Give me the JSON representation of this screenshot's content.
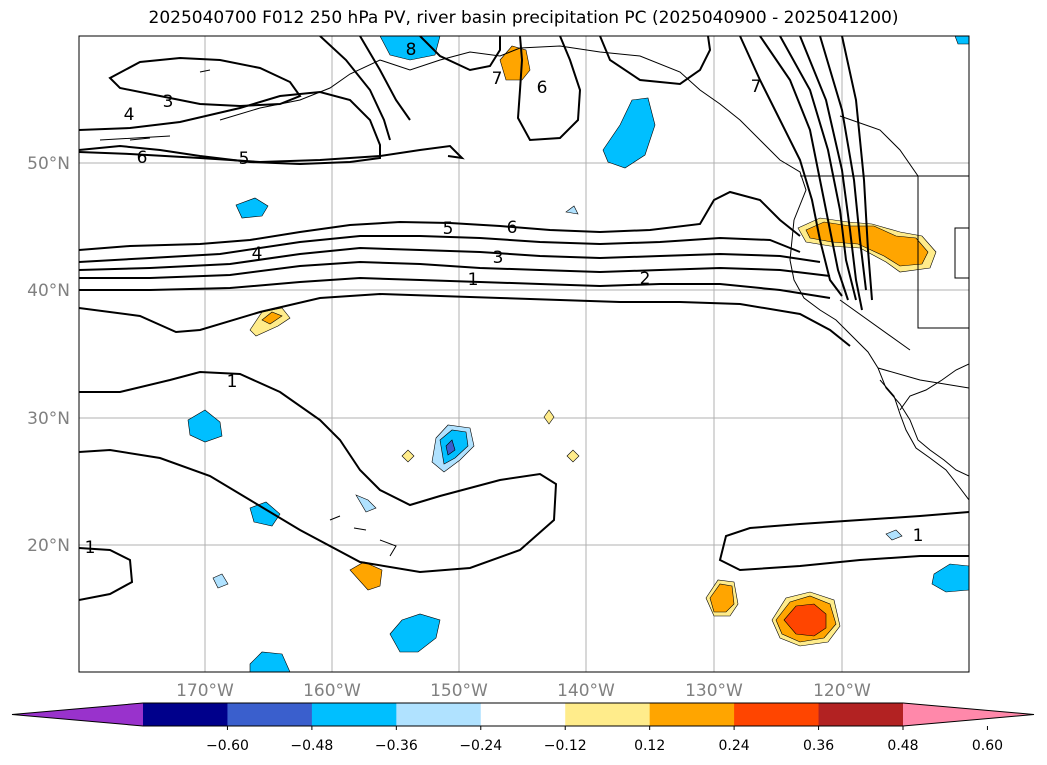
{
  "title": "2025040700 F012 250 hPa PV, river basin precipitation PC (2025040900 - 2025041200)",
  "lat_labels": [
    "50°N",
    "40°N",
    "30°N",
    "20°N"
  ],
  "lon_labels": [
    "170°W",
    "160°W",
    "150°W",
    "140°W",
    "130°W",
    "120°W"
  ],
  "contour_labels": [
    "1",
    "1",
    "1",
    "1",
    "2",
    "3",
    "3",
    "4",
    "4",
    "5",
    "5",
    "6",
    "6",
    "6",
    "7",
    "7",
    "8"
  ],
  "colorbar": {
    "ticks": [
      "−0.60",
      "−0.48",
      "−0.36",
      "−0.24",
      "−0.12",
      "0.12",
      "0.24",
      "0.36",
      "0.48",
      "0.60"
    ],
    "colors": [
      "#9932cc",
      "#00008b",
      "#3a5fcd",
      "#00bfff",
      "#b0e2ff",
      "#ffffff",
      "#ffec8b",
      "#ffa500",
      "#ff4500",
      "#b22222",
      "#ff88aa"
    ]
  },
  "colors": {
    "neg_light": "#b0e2ff",
    "neg_mid": "#00bfff",
    "neg_dark": "#3a5fcd",
    "pos_light": "#ffec8b",
    "pos_mid": "#ffa500",
    "pos_dark": "#ff4500",
    "grid": "#b0b0b0",
    "contour": "#000000",
    "axis_label": "#808080"
  }
}
